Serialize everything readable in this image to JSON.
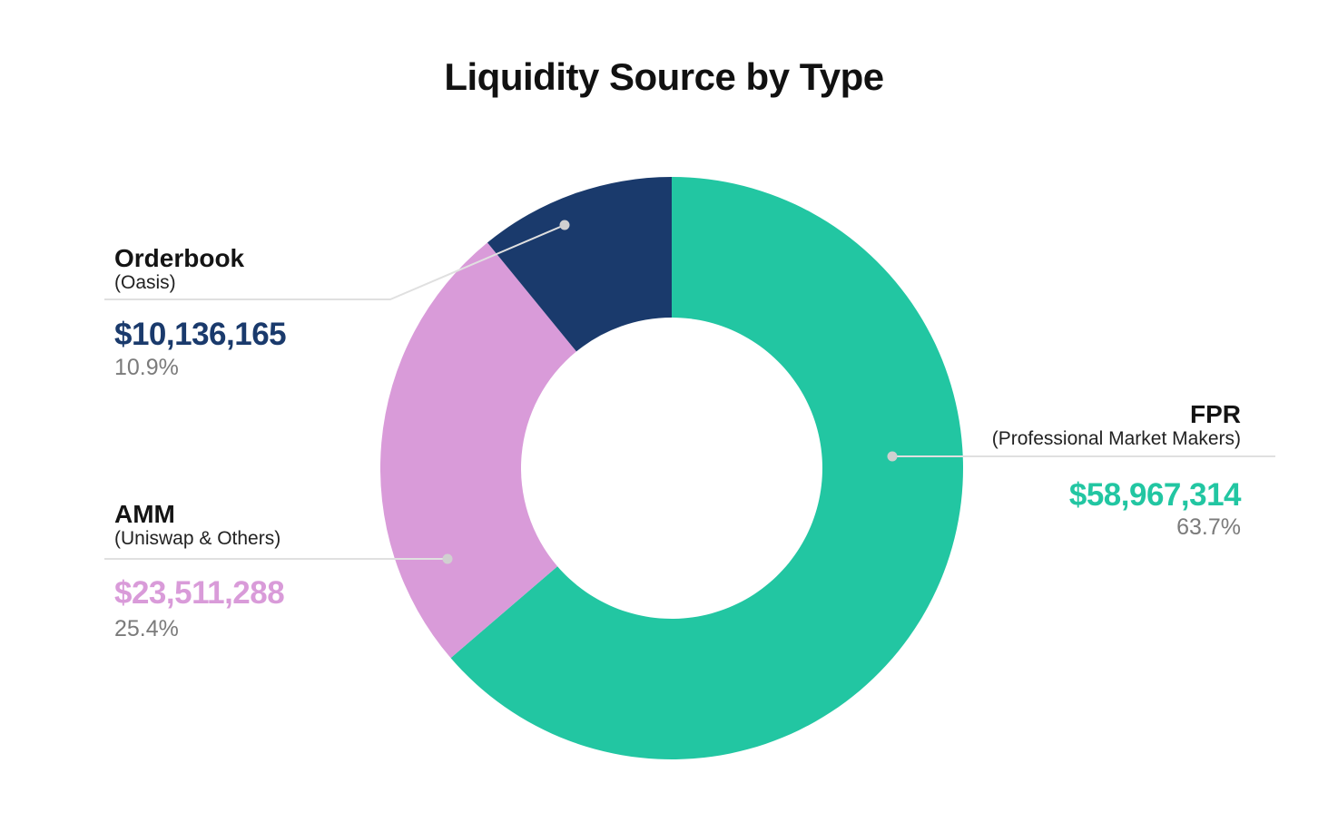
{
  "chart_data": {
    "type": "pie",
    "subtype": "donut",
    "title": "Liquidity Source by Type",
    "direction": "clockwise",
    "start_angle_deg": 0,
    "inner_radius_ratio": 0.517,
    "legend_position": "none",
    "percent_color": "#7B7B7B",
    "leader_line_color": "#E0E0E0",
    "leader_dot_color": "#D0D0D0",
    "series": [
      {
        "id": "fpr",
        "label": "FPR",
        "sublabel": "(Professional Market Makers)",
        "value": 58967314,
        "value_display": "$58,967,314",
        "percent": 63.7,
        "percent_display": "63.7%",
        "color": "#22C6A2"
      },
      {
        "id": "amm",
        "label": "AMM",
        "sublabel": "(Uniswap & Others)",
        "value": 23511288,
        "value_display": "$23,511,288",
        "percent": 25.4,
        "percent_display": "25.4%",
        "color": "#D99BD9"
      },
      {
        "id": "orderbook",
        "label": "Orderbook",
        "sublabel": "(Oasis)",
        "value": 10136165,
        "value_display": "$10,136,165",
        "percent": 10.9,
        "percent_display": "10.9%",
        "color": "#1A3A6C"
      }
    ]
  }
}
